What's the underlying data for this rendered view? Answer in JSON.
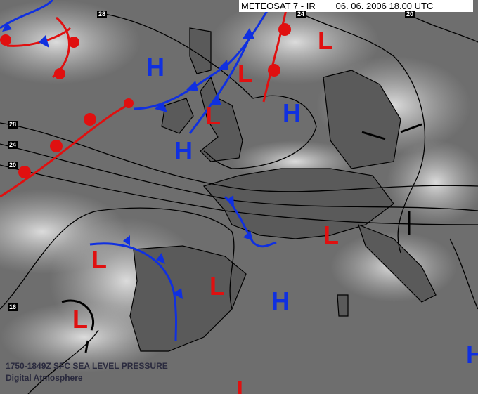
{
  "header": {
    "satellite": "METEOSAT 7 - IR",
    "datetime": "06. 06. 2006 18.00 UTC"
  },
  "footer": {
    "product": "1750-1849Z SFC SEA LEVEL PRESSURE",
    "credit": "Digital Atmosphere"
  },
  "isobar_labels": [
    "28",
    "24",
    "20",
    "28",
    "24",
    "20",
    "16"
  ],
  "pressure_systems": [
    {
      "label": "H",
      "kind": "high"
    },
    {
      "label": "L",
      "kind": "low"
    },
    {
      "label": "L",
      "kind": "low"
    },
    {
      "label": "L",
      "kind": "low"
    },
    {
      "label": "H",
      "kind": "high"
    },
    {
      "label": "H",
      "kind": "high"
    },
    {
      "label": "L",
      "kind": "low"
    },
    {
      "label": "L",
      "kind": "low"
    },
    {
      "label": "L",
      "kind": "low"
    },
    {
      "label": "H",
      "kind": "high"
    },
    {
      "label": "L",
      "kind": "low"
    },
    {
      "label": "H",
      "kind": "high"
    },
    {
      "label": "L",
      "kind": "low"
    }
  ],
  "colors": {
    "high": "#1030e0",
    "low": "#e01010",
    "cold_front": "#1030e0",
    "warm_front": "#e01010",
    "isobar": "#000000"
  }
}
